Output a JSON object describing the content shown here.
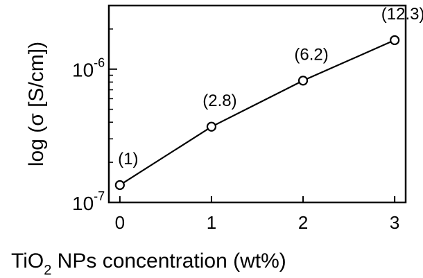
{
  "chart_data": {
    "type": "line",
    "title": "",
    "xlabel": {
      "pre": "TiO",
      "sub": "2",
      "post": " NPs concentration (wt%)"
    },
    "ylabel": "log (σ [S/cm])",
    "x": [
      0,
      1,
      2,
      3
    ],
    "values": [
      1.35e-07,
      3.7e-07,
      8.2e-07,
      1.65e-06
    ],
    "point_labels": [
      "(1)",
      "(2.8)",
      "(6.2)",
      "(12.3)"
    ],
    "xlim": [
      -0.12,
      3.12
    ],
    "ylim": [
      1e-07,
      3e-06
    ],
    "yscale": "log",
    "xticks": [
      0,
      1,
      2,
      3
    ],
    "xtick_labels": [
      "0",
      "1",
      "2",
      "3"
    ],
    "yticks_major": [
      {
        "value": 1e-07,
        "base": "10",
        "exp": "-7"
      },
      {
        "value": 1e-06,
        "base": "10",
        "exp": "-6"
      }
    ],
    "grid": false,
    "legend": "none",
    "marker": "open-circle",
    "line_color": "#000000"
  }
}
